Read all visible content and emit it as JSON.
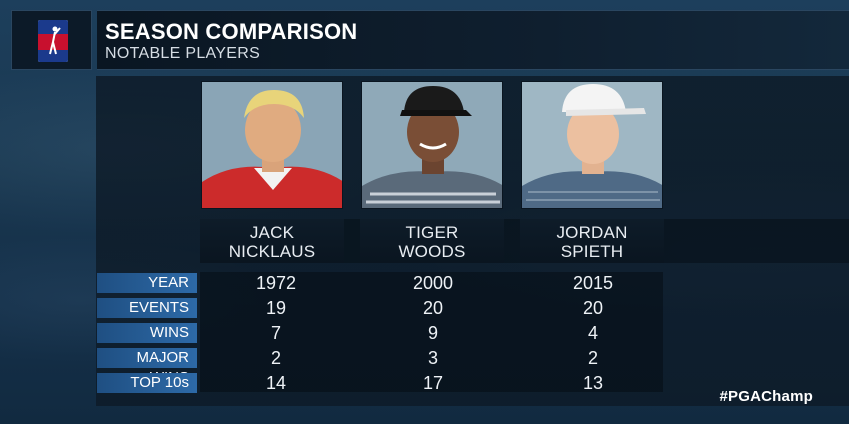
{
  "logo": {
    "name": "PGA Tour"
  },
  "header": {
    "title": "SEASON COMPARISON",
    "subtitle": "NOTABLE PLAYERS"
  },
  "players": [
    {
      "first": "JACK",
      "last": "NICKLAUS",
      "year": "1972",
      "events": "19",
      "wins": "7",
      "major_wins": "2",
      "top10s": "14"
    },
    {
      "first": "TIGER",
      "last": "WOODS",
      "year": "2000",
      "events": "20",
      "wins": "9",
      "major_wins": "3",
      "top10s": "17"
    },
    {
      "first": "JORDAN",
      "last": "SPIETH",
      "year": "2015",
      "events": "20",
      "wins": "4",
      "major_wins": "2",
      "top10s": "13"
    }
  ],
  "labels": {
    "year": "YEAR",
    "events": "EVENTS",
    "wins": "WINS",
    "major_wins": "MAJOR WINS",
    "top10s": "TOP 10s"
  },
  "hashtag": "#PGAChamp",
  "colors": {
    "label_bar": "#2d6aa8",
    "panel": "#0c1824"
  }
}
